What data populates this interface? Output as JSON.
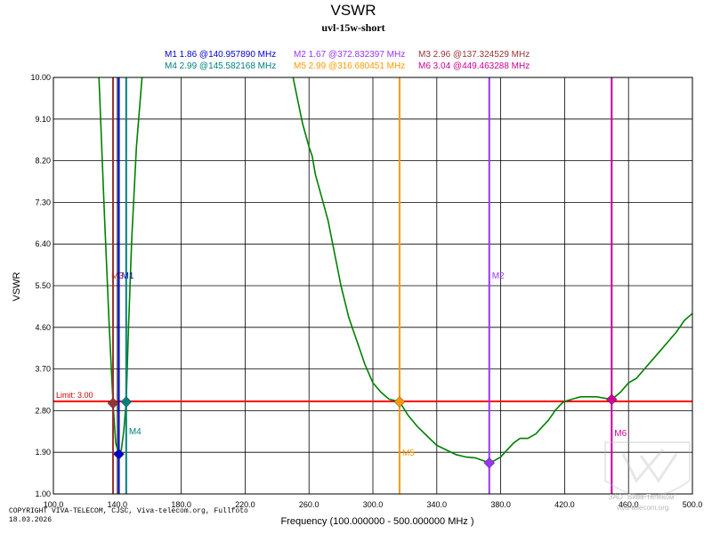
{
  "chart_data": {
    "type": "line",
    "title": "VSWR",
    "subtitle": "uvl-15w-short",
    "xlabel": "Frequency (100.000000 - 500.000000 MHz )",
    "ylabel": "VSWR",
    "xlim": [
      100,
      500
    ],
    "ylim": [
      1.0,
      10.0
    ],
    "x_ticks": [
      "100.0",
      "140.0",
      "180.0",
      "220.0",
      "260.0",
      "300.0",
      "340.0",
      "380.0",
      "420.0",
      "460.0",
      "500.0"
    ],
    "y_ticks": [
      "1.00",
      "1.90",
      "2.80",
      "3.70",
      "4.60",
      "5.50",
      "6.40",
      "7.30",
      "8.20",
      "9.10",
      "10.00"
    ],
    "limit": {
      "value": 3.0,
      "label": "Limit: 3.00",
      "color": "#ff0000"
    },
    "series": [
      {
        "name": "VSWR",
        "color": "#008000",
        "x": [
          128.5,
          132,
          135,
          137.3,
          139,
          140.96,
          142.5,
          144,
          145.58,
          147,
          149,
          152,
          155.5,
          250,
          253,
          256,
          260,
          262,
          264,
          268,
          272,
          276,
          280,
          285,
          290,
          295,
          300,
          305,
          310,
          316.7,
          322,
          328,
          334,
          340,
          346,
          352,
          358,
          364,
          369,
          372.8,
          376,
          380,
          384,
          388,
          392,
          397,
          402,
          406,
          410,
          414,
          418,
          420,
          425,
          430,
          440,
          449.5,
          455,
          460,
          465,
          470,
          475,
          480,
          485,
          490,
          495,
          500
        ],
        "values": [
          10.0,
          7.0,
          4.6,
          2.96,
          2.1,
          1.86,
          1.95,
          2.35,
          2.99,
          4.6,
          6.5,
          8.5,
          10.0,
          10.0,
          9.5,
          9.0,
          8.5,
          8.3,
          7.9,
          7.4,
          6.9,
          6.2,
          5.5,
          4.8,
          4.3,
          3.8,
          3.4,
          3.2,
          3.05,
          2.99,
          2.7,
          2.45,
          2.25,
          2.05,
          1.95,
          1.85,
          1.8,
          1.78,
          1.72,
          1.67,
          1.72,
          1.8,
          1.95,
          2.1,
          2.2,
          2.2,
          2.3,
          2.45,
          2.6,
          2.8,
          2.95,
          3.0,
          3.05,
          3.1,
          3.1,
          3.04,
          3.2,
          3.4,
          3.5,
          3.7,
          3.9,
          4.1,
          4.3,
          4.5,
          4.75,
          4.9
        ]
      }
    ],
    "markers": [
      {
        "name": "M1",
        "vswr_text": "1.86",
        "freq_text": "140.957890 MHz",
        "x": 140.95789,
        "y": 1.86,
        "color": "#0000cc"
      },
      {
        "name": "M2",
        "vswr_text": "1.67",
        "freq_text": "372.832397 MHz",
        "x": 372.832397,
        "y": 1.67,
        "color": "#9933ff"
      },
      {
        "name": "M3",
        "vswr_text": "2.96",
        "freq_text": "137.324529 MHz",
        "x": 137.324529,
        "y": 2.96,
        "color": "#993333"
      },
      {
        "name": "M4",
        "vswr_text": "2.99",
        "freq_text": "145.582168 MHz",
        "x": 145.582168,
        "y": 2.99,
        "color": "#008080"
      },
      {
        "name": "M5",
        "vswr_text": "2.99",
        "freq_text": "316.680451 MHz",
        "x": 316.680451,
        "y": 2.99,
        "color": "#ff9900"
      },
      {
        "name": "M6",
        "vswr_text": "3.04",
        "freq_text": "449.463288 MHz",
        "x": 449.463288,
        "y": 3.04,
        "color": "#cc0099"
      }
    ],
    "readout_separator": "@",
    "copyright": "COPYRIGHT VIVA-TELECOM, CJSC, Viva-telecom.org, Fullfoto",
    "date": "18.03.2026",
    "watermark": "ЗАО \"Вива-Телеком\"",
    "watermark_url": "viva-telecom.org"
  }
}
